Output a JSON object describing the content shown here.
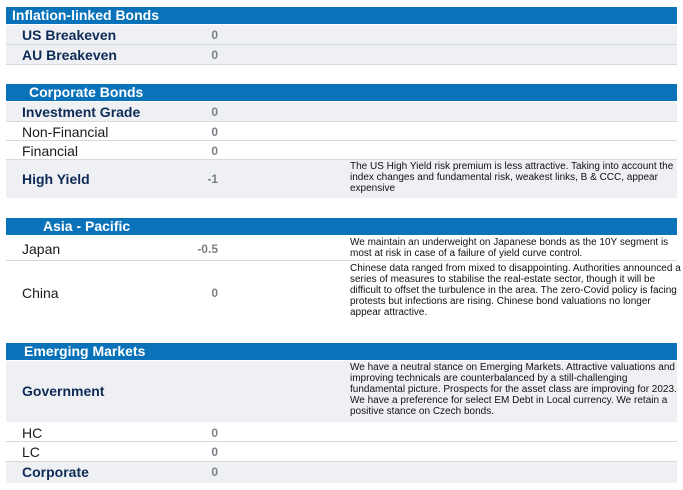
{
  "sections": {
    "inflation": {
      "title": "Inflation-linked Bonds",
      "rows": [
        {
          "label": "US Breakeven",
          "score": "0"
        },
        {
          "label": "AU Breakeven",
          "score": "0"
        }
      ]
    },
    "corporate": {
      "title": "Corporate Bonds",
      "rows": [
        {
          "label": "Investment Grade",
          "score": "0"
        },
        {
          "label": "Non-Financial",
          "score": "0"
        },
        {
          "label": "Financial",
          "score": "0"
        },
        {
          "label": "High Yield",
          "score": "-1",
          "comment": "The US High Yield risk premium is less attractive. Taking into account the index changes and fundamental risk, weakest links, B & CCC, appear expensive"
        }
      ]
    },
    "asia": {
      "title": "Asia - Pacific",
      "rows": [
        {
          "label": "Japan",
          "score": "-0.5",
          "comment": "We maintain an underweight on Japanese bonds as the 10Y segment is most at risk in case of a failure of yield curve control."
        },
        {
          "label": "China",
          "score": "0",
          "comment": "Chinese data ranged from mixed to disappointing. Authorities announced a series of measures to stabilise the real-estate sector, though it will be difficult to offset the turbulence in the area. The zero-Covid policy is facing protests but infections are rising. Chinese bond valuations no longer appear attractive."
        }
      ]
    },
    "em": {
      "title": "Emerging Markets",
      "rows": [
        {
          "label": "Government",
          "score": "",
          "comment": "We have a neutral stance on Emerging Markets. Attractive valuations and improving technicals are counterbalanced by a still-challenging fundamental picture. Prospects for the asset class are improving for 2023. We have a preference for select EM Debt in Local currency. We retain a positive stance on Czech bonds."
        },
        {
          "label": "HC",
          "score": "0"
        },
        {
          "label": "LC",
          "score": "0"
        },
        {
          "label": "Corporate",
          "score": "0"
        }
      ]
    }
  }
}
